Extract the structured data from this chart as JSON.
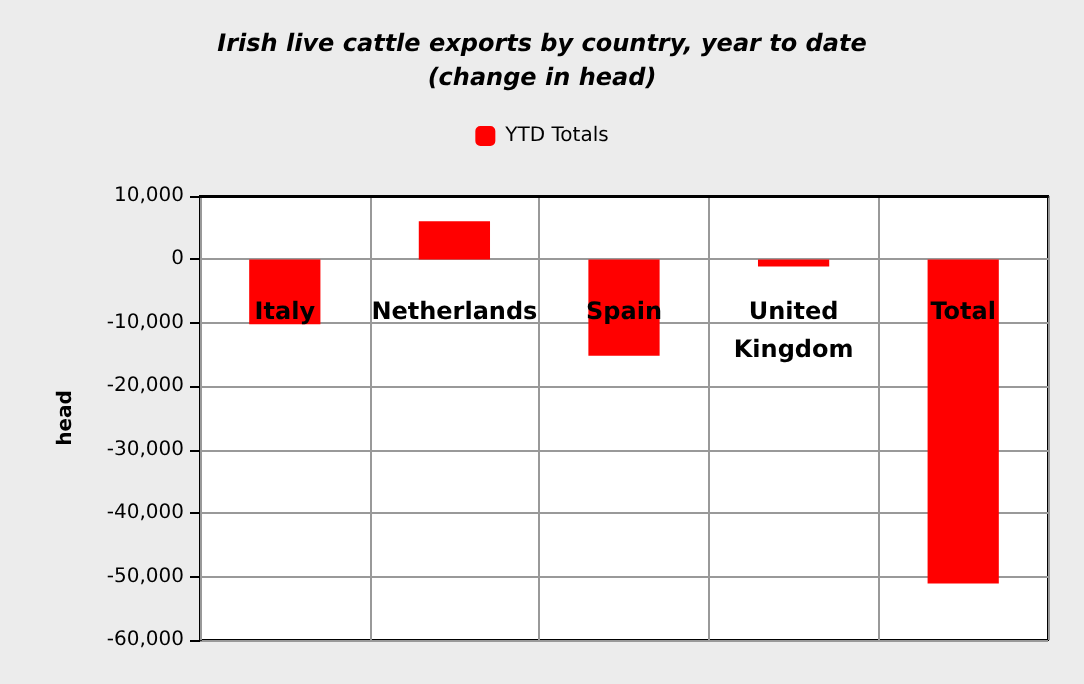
{
  "chart_data": {
    "type": "bar",
    "title": "Irish live cattle exports by country, year to date\n(change in head)",
    "ylabel": "head",
    "categories": [
      "Italy",
      "Netherlands",
      "Spain",
      "United\nKingdom",
      "Total"
    ],
    "series": [
      {
        "name": "YTD Totals",
        "color": "#ff0000",
        "values": [
          -10200,
          6000,
          -15200,
          -1100,
          -51100
        ]
      }
    ],
    "ylim": [
      -60000,
      10000
    ],
    "yticks": [
      {
        "value": -60000,
        "label": "-60,000"
      },
      {
        "value": -50000,
        "label": "-50,000"
      },
      {
        "value": -40000,
        "label": "-40,000"
      },
      {
        "value": -30000,
        "label": "-30,000"
      },
      {
        "value": -20000,
        "label": "-20,000"
      },
      {
        "value": -10000,
        "label": "-10,000"
      },
      0,
      {
        "value": 10000,
        "label": "10,000"
      }
    ],
    "grid": true,
    "legend": "top"
  }
}
